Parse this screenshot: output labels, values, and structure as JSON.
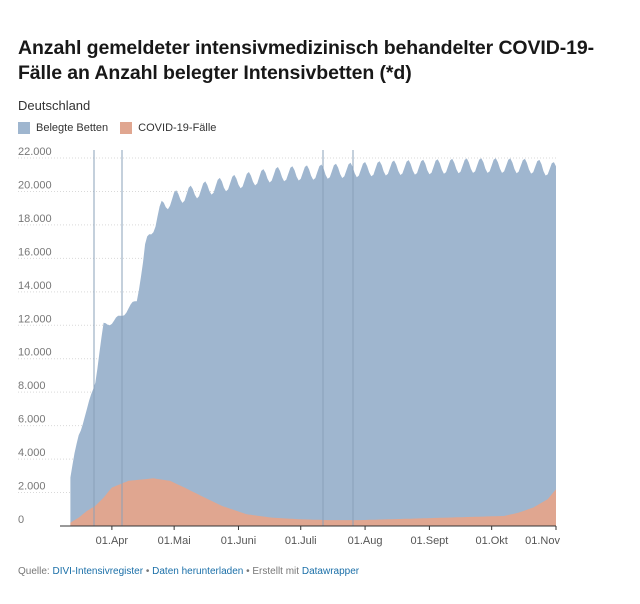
{
  "title": "Anzahl gemeldeter intensivmedizinisch behandelter COVID-19-Fälle an Anzahl belegter Intensivbetten (*d)",
  "subtitle": "Deutschland",
  "footer": {
    "source_label": "Quelle:",
    "source_link": "DIVI-Intensivregister",
    "sep1": "•",
    "download": "Daten herunterladen",
    "sep2": "• Erstellt mit",
    "tool": "Datawrapper"
  },
  "chart_data": {
    "type": "area",
    "title": "Anzahl gemeldeter intensivmedizinisch behandelter COVID-19-Fälle an Anzahl belegter Intensivbetten (*d)",
    "subtitle": "Deutschland",
    "ylim": [
      0,
      22000
    ],
    "yticks": [
      0,
      2000,
      4000,
      6000,
      8000,
      10000,
      12000,
      14000,
      16000,
      18000,
      20000,
      22000
    ],
    "ytick_labels": [
      "0",
      "2.000",
      "4.000",
      "6.000",
      "8.000",
      "10.000",
      "12.000",
      "14.000",
      "16.000",
      "18.000",
      "20.000",
      "22.000"
    ],
    "xticks": [
      "2021-04-01",
      "2021-05-01",
      "2021-06-01",
      "2021-07-01",
      "2021-08-01",
      "2021-09-01",
      "2021-10-01",
      "2021-11-01"
    ],
    "xtick_labels": [
      "01.Apr",
      "01.Mai",
      "01.Juni",
      "01.Juli",
      "01.Aug",
      "01.Sept",
      "01.Okt",
      "01.Nov"
    ],
    "xlim": [
      "2021-03-07",
      "2021-11-01"
    ],
    "legend_position": "top-left",
    "colors": {
      "beds": "#9fb6cf",
      "covid": "#e0a690",
      "beds_swatch": "#9fb6cf",
      "covid_swatch": "#e0a690"
    },
    "series": [
      {
        "name": "Belegte Betten",
        "x": [
          "2021-03-12",
          "2021-03-16",
          "2021-03-20",
          "2021-03-24",
          "2021-03-28",
          "2021-04-01",
          "2021-04-05",
          "2021-04-09",
          "2021-04-13",
          "2021-04-17",
          "2021-04-21",
          "2021-04-25",
          "2021-04-29",
          "2021-05-06",
          "2021-05-14",
          "2021-05-24",
          "2021-06-05",
          "2021-06-17",
          "2021-07-01",
          "2021-07-15",
          "2021-07-29",
          "2021-08-12",
          "2021-08-26",
          "2021-09-09",
          "2021-09-23",
          "2021-10-07",
          "2021-10-21",
          "2021-11-01"
        ],
        "values": [
          2900,
          5500,
          6900,
          8700,
          12000,
          12200,
          12500,
          13000,
          13500,
          16500,
          18000,
          19000,
          19500,
          19800,
          20100,
          20400,
          20700,
          21000,
          21100,
          21200,
          21300,
          21400,
          21450,
          21500,
          21550,
          21550,
          21500,
          21300
        ]
      },
      {
        "name": "COVID-19-Fälle",
        "x": [
          "2021-03-12",
          "2021-03-16",
          "2021-03-20",
          "2021-03-24",
          "2021-03-28",
          "2021-04-01",
          "2021-04-09",
          "2021-04-17",
          "2021-04-21",
          "2021-04-29",
          "2021-05-06",
          "2021-05-14",
          "2021-05-24",
          "2021-06-05",
          "2021-06-17",
          "2021-07-01",
          "2021-07-15",
          "2021-07-29",
          "2021-08-12",
          "2021-08-26",
          "2021-09-09",
          "2021-09-23",
          "2021-10-07",
          "2021-10-14",
          "2021-10-21",
          "2021-10-28",
          "2021-11-01"
        ],
        "values": [
          200,
          500,
          900,
          1200,
          1700,
          2300,
          2700,
          2800,
          2850,
          2700,
          2300,
          1800,
          1200,
          700,
          500,
          400,
          350,
          350,
          400,
          450,
          500,
          550,
          600,
          800,
          1100,
          1600,
          2200
        ]
      }
    ]
  }
}
